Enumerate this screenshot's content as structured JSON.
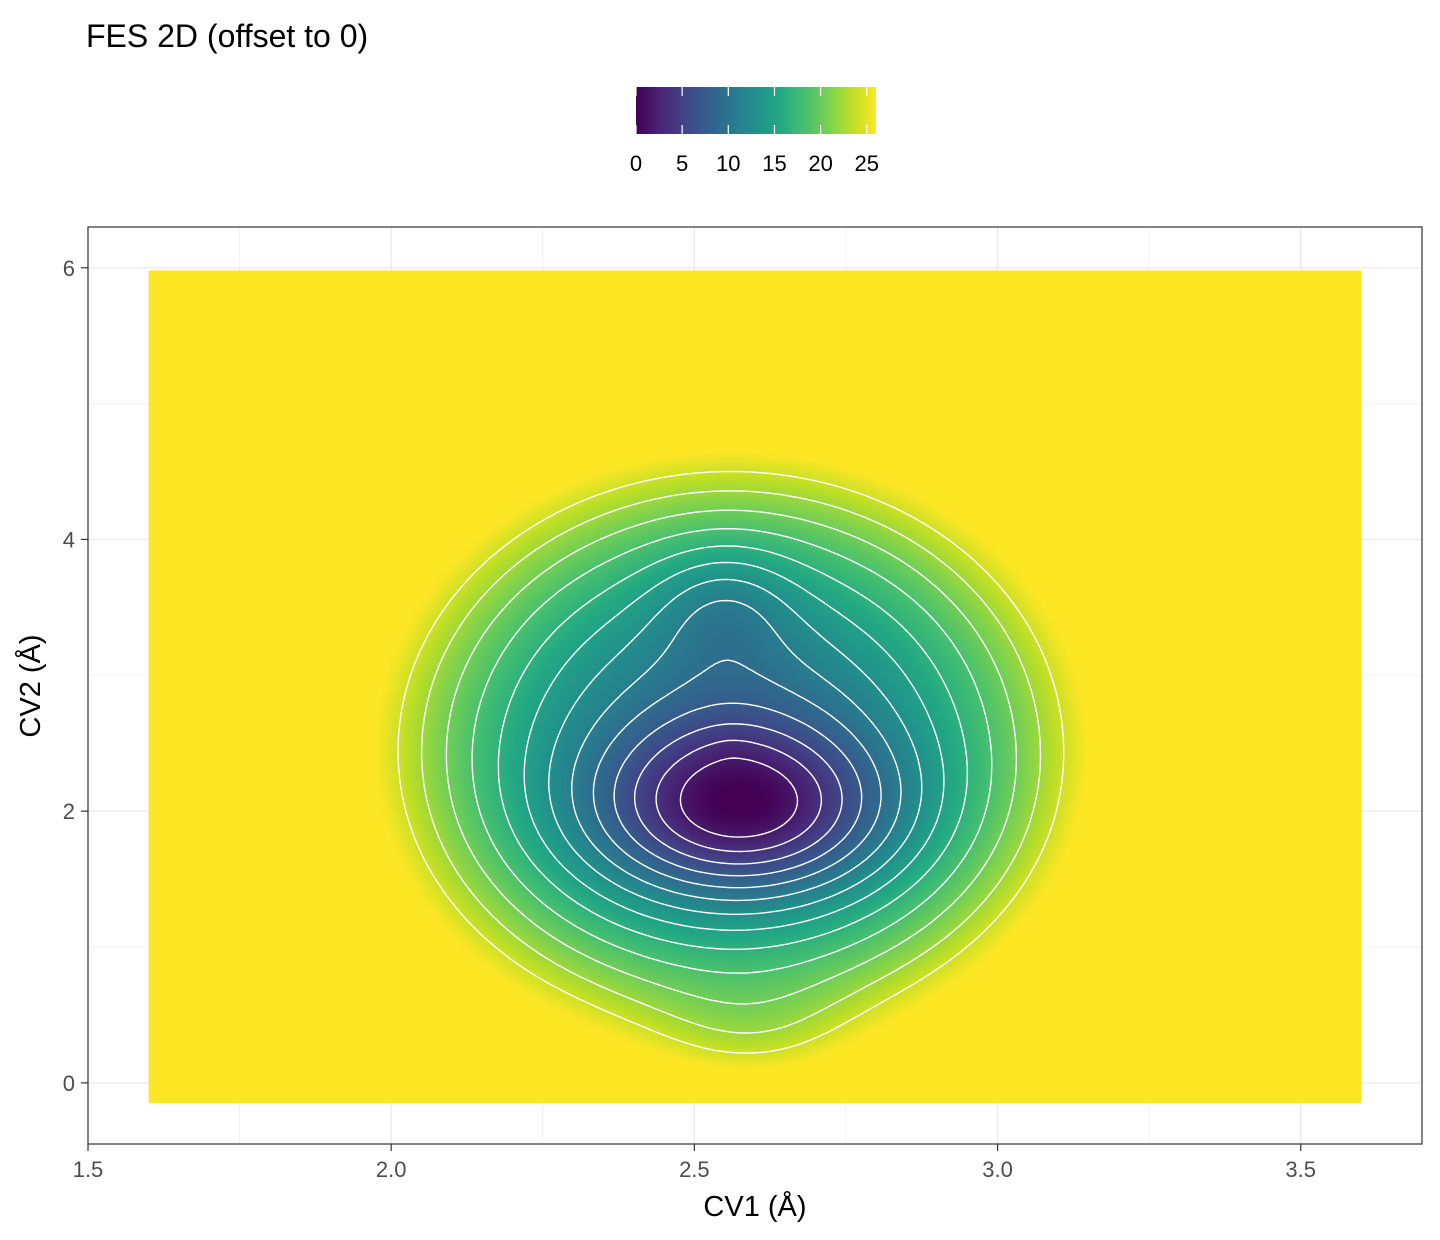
{
  "chart_data": {
    "type": "heatmap",
    "title": "FES 2D (offset to 0)",
    "xlabel": "CV1 (Å)",
    "ylabel": "CV2 (Å)",
    "xlim": [
      1.5,
      3.7
    ],
    "ylim": [
      -0.45,
      6.3
    ],
    "x_ticks": [
      "1.5",
      "2.0",
      "2.5",
      "3.0",
      "3.5"
    ],
    "y_ticks": [
      "0",
      "2",
      "4",
      "6"
    ],
    "data_extent": {
      "x": [
        1.6,
        3.6
      ],
      "y": [
        -0.15,
        5.98
      ]
    },
    "colorbar": {
      "min": 0,
      "max": 26,
      "ticks": [
        "0",
        "5",
        "10",
        "15",
        "20",
        "25"
      ]
    },
    "colormap": "viridis",
    "colors": {
      "contour": "#ffffff",
      "panel_border": "#333333",
      "grid": "#ebebeb"
    },
    "grid": true,
    "legend_position": "top",
    "contour_lines": 13
  }
}
